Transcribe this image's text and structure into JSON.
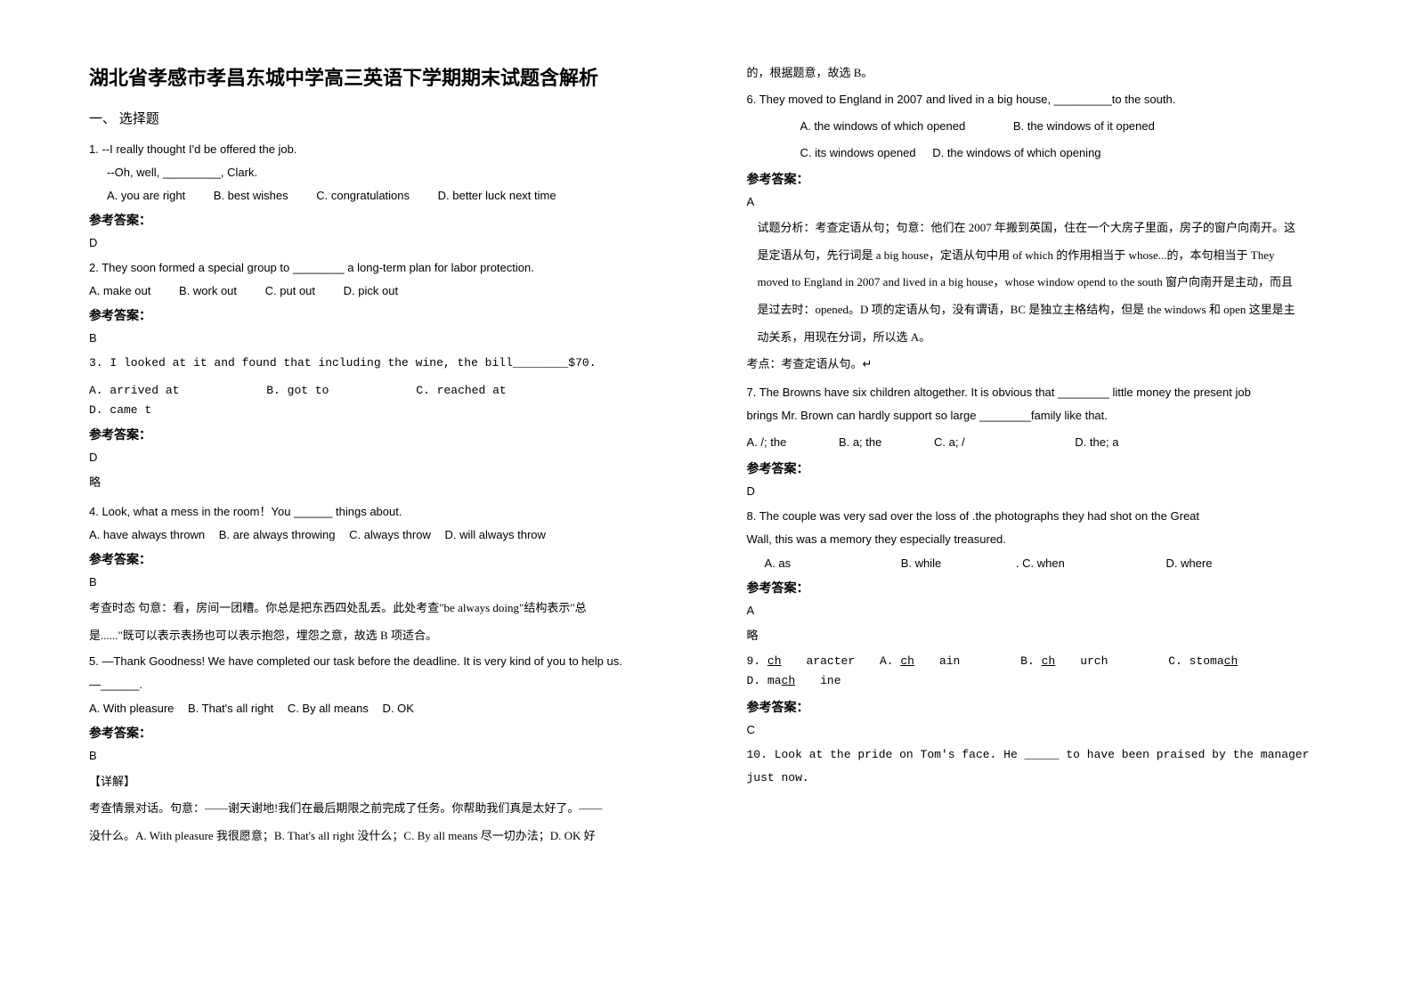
{
  "title": "湖北省孝感市孝昌东城中学高三英语下学期期末试题含解析",
  "section1_header": "一、 选择题",
  "answer_label": "参考答案：",
  "q1": {
    "line1": "1. --I really thought I'd be offered the job.",
    "line2": "--Oh, well, _________, Clark.",
    "optA": "A. you are right",
    "optB": "B. best wishes",
    "optC": "C. congratulations",
    "optD": "D. better luck next time",
    "answer": "D"
  },
  "q2": {
    "text": "2. They soon formed a special group to ________ a long-term plan for labor protection.",
    "optA": "A. make out",
    "optB": "B. work out",
    "optC": "C. put out",
    "optD": "D. pick out",
    "answer": "B"
  },
  "q3": {
    "text": "3. I looked at it and found that including the wine, the bill________$70.",
    "optA": "A. arrived at",
    "optB": "B. got to",
    "optC": "C. reached at",
    "optD": "D. came t",
    "answer": "D",
    "note": "略"
  },
  "q4": {
    "text": "4. Look, what a mess in the room！You ______ things about.",
    "optA": "A. have always thrown",
    "optB": "B. are always throwing",
    "optC": "C. always throw",
    "optD": "D. will always throw",
    "answer": "B",
    "exp1": "考查时态   句意：看，房间一团糟。你总是把东西四处乱丢。此处考查\"be always doing\"结构表示\"总",
    "exp2": "是......\"既可以表示表扬也可以表示抱怨，埋怨之意，故选 B 项适合。"
  },
  "q5": {
    "text": "5. —Thank Goodness! We have completed our task before the deadline. It is very kind of you to help us.",
    "text2": "—______.",
    "optA": "A. With pleasure",
    "optB": "B. That's all right",
    "optC": "C. By all means",
    "optD": "D. OK",
    "answer": "B",
    "exp_label": "【详解】",
    "exp1": "考查情景对话。句意：——谢天谢地!我们在最后期限之前完成了任务。你帮助我们真是太好了。——",
    "exp2": "没什么。A. With pleasure 我很愿意；B. That's all right 没什么；C. By all means 尽一切办法；D. OK 好",
    "exp3": "的，根据题意，故选 B。"
  },
  "q6": {
    "text": "6. They moved to England in 2007 and lived in a big house, _________to the south.",
    "optA": "A. the windows of which opened",
    "optB": "B. the windows of it opened",
    "optC": "C. its windows opened",
    "optD": "D. the windows of which opening",
    "answer": "A",
    "exp1": "试题分析：考查定语从句；句意：他们在 2007 年搬到英国，住在一个大房子里面，房子的窗户向南开。这",
    "exp2": "是定语从句，先行词是 a big house，定语从句中用 of which 的作用相当于 whose...的，本句相当于 They",
    "exp3": "moved to England in 2007 and lived in a big house，whose window opend to the south 窗户向南开是主动，而且",
    "exp4": "是过去时：opened。D 项的定语从句，没有谓语，BC 是独立主格结构，但是 the windows 和 open 这里是主",
    "exp5": "动关系，用现在分词，所以选 A。",
    "exp6": "考点：考查定语从句。↵"
  },
  "q7": {
    "text1": "7. The Browns have six children altogether. It is obvious that ________  little money the present job",
    "text2": "brings Mr. Brown can hardly support so large ________family like that.",
    "optA": "A. /; the",
    "optB": "B. a; the",
    "optC": "C. a; /",
    "optD": "D. the; a",
    "answer": "D"
  },
  "q8": {
    "text1": "8. The couple was very sad over the loss of .the photographs they had shot on the Great",
    "text2": "Wall,               this was a memory they especially treasured.",
    "optA": "A. as",
    "optB": "B. while",
    "optC": ". C. when",
    "optD": "D. where",
    "answer": "A",
    "note": "略"
  },
  "q9": {
    "text": "9. character",
    "optA": "A. chain",
    "optB": "B. church",
    "optC": "C. stomach",
    "optD": "D. machine",
    "answer": "C"
  },
  "q10": {
    "text1": "10. Look at the pride on Tom's face. He _____ to have been praised by the manager",
    "text2": "just now."
  }
}
